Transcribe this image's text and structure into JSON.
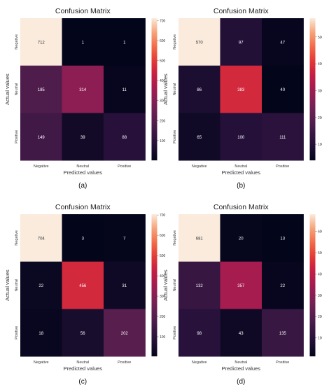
{
  "chart_data": [
    {
      "type": "heatmap",
      "title": "Confusion Matrix",
      "xlabel": "Predicted values",
      "ylabel": "Actual values",
      "x_categories": [
        "Negative",
        "Neutral",
        "Positive"
      ],
      "y_categories": [
        "Negative",
        "Neutral",
        "Positive"
      ],
      "values": [
        [
          712,
          1,
          1
        ],
        [
          185,
          314,
          11
        ],
        [
          149,
          39,
          88
        ]
      ],
      "colorbar_ticks": [
        100,
        200,
        300,
        400,
        500,
        600,
        700
      ],
      "colorbar_range": [
        1,
        712
      ],
      "caption": "(a)"
    },
    {
      "type": "heatmap",
      "title": "Confusion Matrix",
      "xlabel": "Predicted values",
      "ylabel": "Actual values",
      "x_categories": [
        "Negative",
        "Neutral",
        "Positive"
      ],
      "y_categories": [
        "Negative",
        "Neutral",
        "Positive"
      ],
      "values": [
        [
          570,
          97,
          47
        ],
        [
          86,
          383,
          40
        ],
        [
          65,
          100,
          111
        ]
      ],
      "colorbar_ticks": [
        100,
        200,
        300,
        400,
        500
      ],
      "colorbar_range": [
        40,
        570
      ],
      "caption": "(b)"
    },
    {
      "type": "heatmap",
      "title": "Confusion Matrix",
      "xlabel": "Predicted values",
      "ylabel": "Actual values",
      "x_categories": [
        "Negative",
        "Neutral",
        "Positive"
      ],
      "y_categories": [
        "Negative",
        "Neutral",
        "Positive"
      ],
      "values": [
        [
          704,
          3,
          7
        ],
        [
          22,
          456,
          31
        ],
        [
          18,
          56,
          202
        ]
      ],
      "colorbar_ticks": [
        100,
        200,
        300,
        400,
        500,
        600,
        700
      ],
      "colorbar_range": [
        3,
        704
      ],
      "caption": "(c)"
    },
    {
      "type": "heatmap",
      "title": "Confusion Matrix",
      "xlabel": "Predicted values",
      "ylabel": "Actual values",
      "x_categories": [
        "Negative",
        "Neutral",
        "Positive"
      ],
      "y_categories": [
        "Negative",
        "Neutral",
        "Positive"
      ],
      "values": [
        [
          681,
          20,
          13
        ],
        [
          132,
          357,
          22
        ],
        [
          98,
          43,
          135
        ]
      ],
      "colorbar_ticks": [
        100,
        200,
        300,
        400,
        500,
        600
      ],
      "colorbar_range": [
        13,
        681
      ],
      "caption": "(d)"
    }
  ]
}
